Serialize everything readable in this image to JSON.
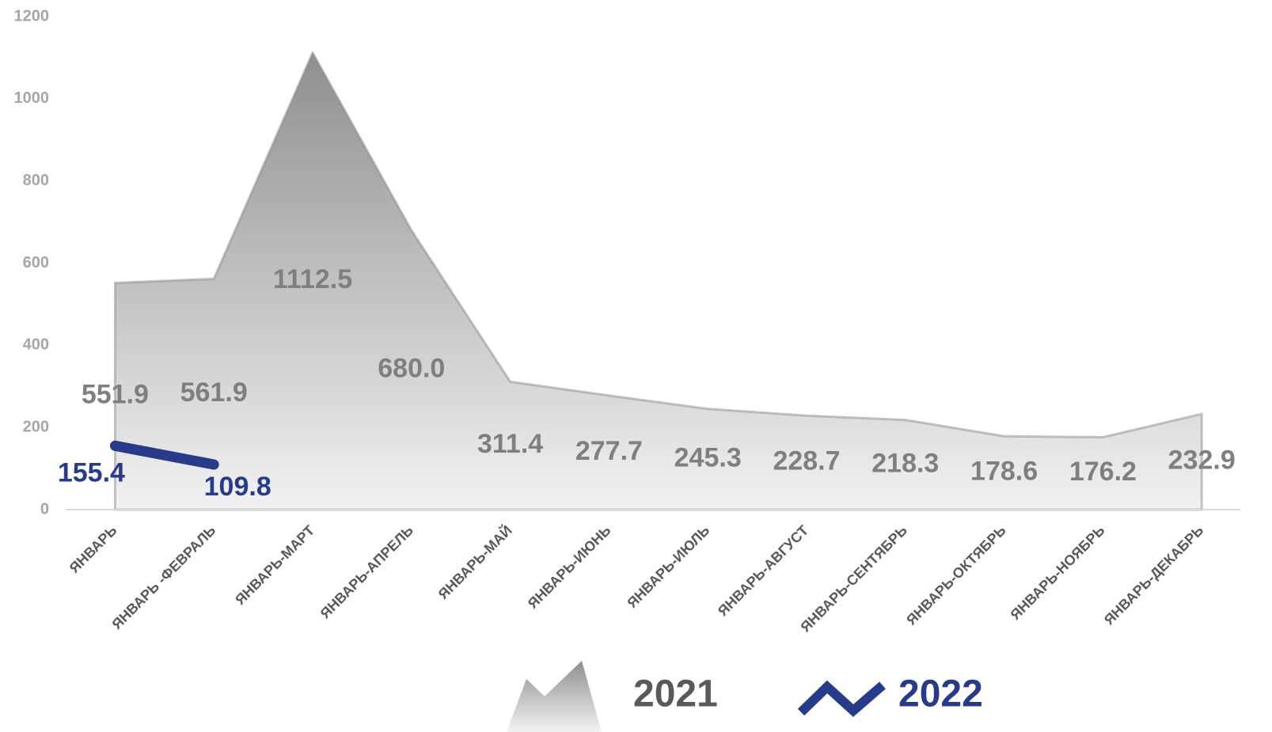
{
  "chart_data": {
    "type": "area",
    "categories": [
      "ЯНВАРЬ",
      "ЯНВАРЬ -ФЕВРАЛЬ",
      "ЯНВАРЬ-МАРТ",
      "ЯНВАРЬ-АПРЕЛЬ",
      "ЯНВАРЬ-МАЙ",
      "ЯНВАРЬ-ИЮНЬ",
      "ЯНВАРЬ-ИЮЛЬ",
      "ЯНВАРЬ-АВГУСТ",
      "ЯНВАРЬ-СЕНТЯБРЬ",
      "ЯНВАРЬ-ОКТЯБРЬ",
      "ЯНВАРЬ-НОЯБРЬ",
      "ЯНВАРЬ-ДЕКАБРЬ"
    ],
    "series": [
      {
        "name": "2021",
        "type": "area",
        "color": "#8c8c8c",
        "values": [
          551.9,
          561.9,
          1112.5,
          680.0,
          311.4,
          277.7,
          245.3,
          228.7,
          218.3,
          178.6,
          176.2,
          232.9
        ],
        "value_labels": [
          "551.9",
          "561.9",
          "1112.5",
          "680.0",
          "311.4",
          "277.7",
          "245.3",
          "228.7",
          "218.3",
          "178.6",
          "176.2",
          "232.9"
        ]
      },
      {
        "name": "2022",
        "type": "line",
        "color": "#283a8a",
        "values": [
          155.4,
          109.8,
          null,
          null,
          null,
          null,
          null,
          null,
          null,
          null,
          null,
          null
        ]
      }
    ],
    "ylim": [
      0,
      1200
    ],
    "yticks": [
      0,
      200,
      400,
      600,
      800,
      1000,
      1200
    ],
    "grid": false,
    "legend": "bottom"
  }
}
